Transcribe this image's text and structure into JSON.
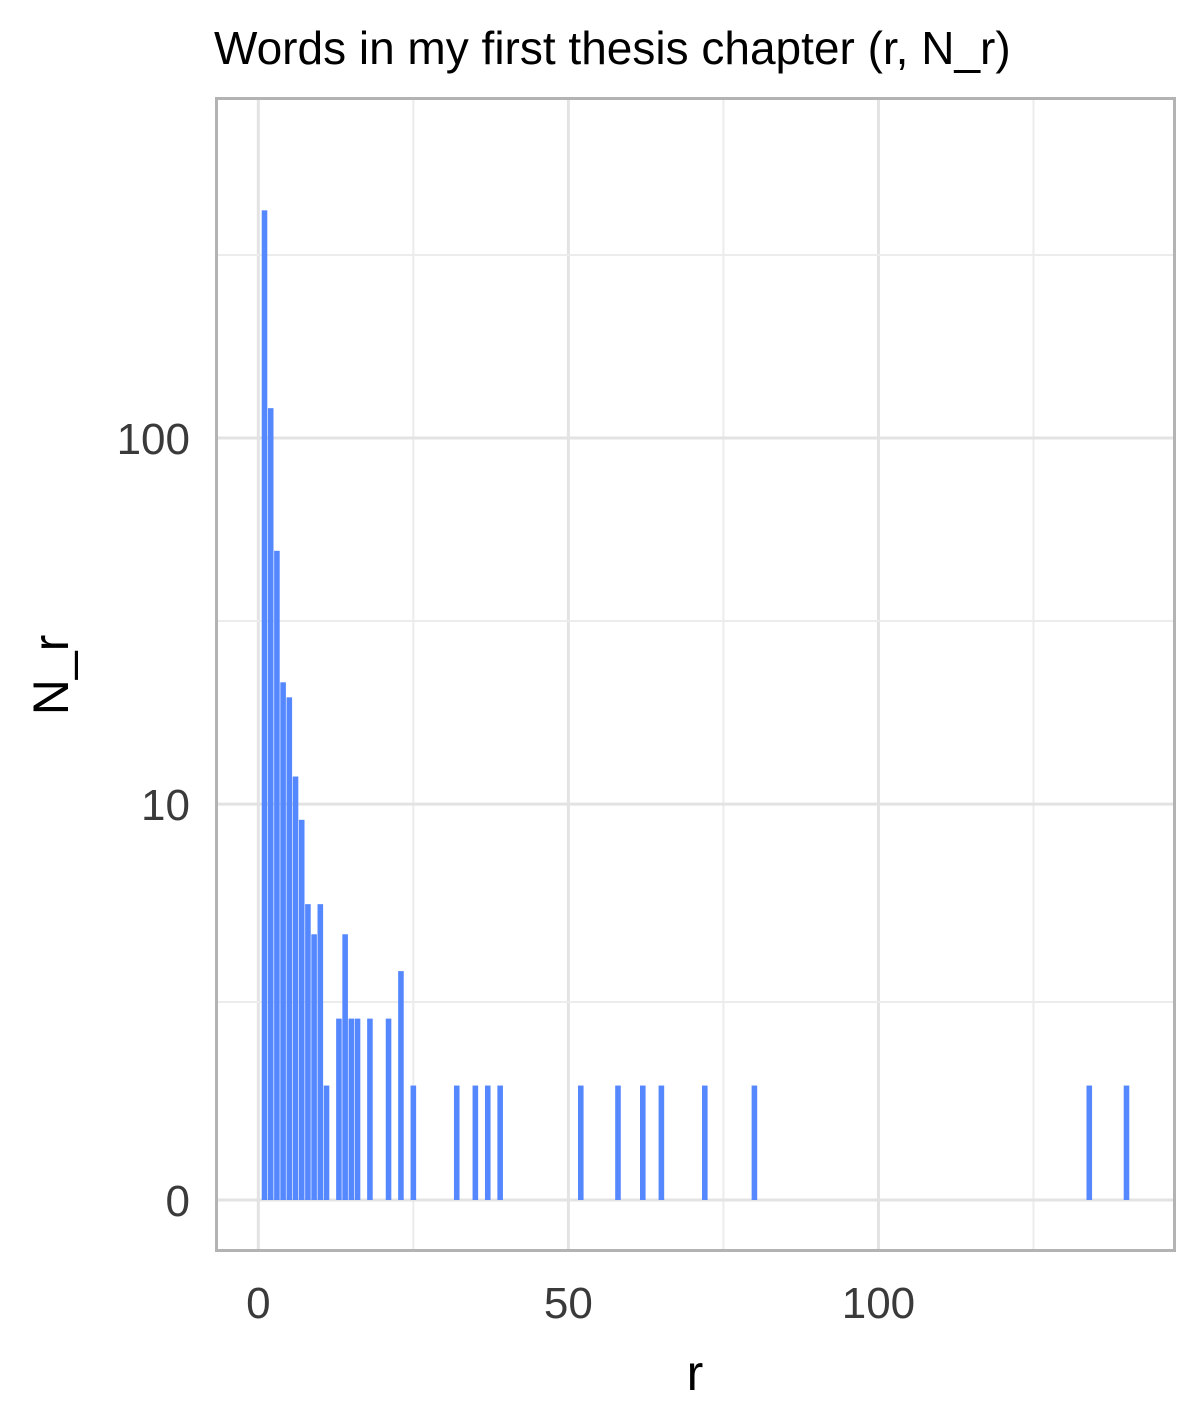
{
  "chart_data": {
    "type": "bar",
    "title": "Words in my first thesis chapter (r, N_r)",
    "xlabel": "r",
    "ylabel": "N_r",
    "y_scale": "log(1+y)",
    "xlim": [
      -6.5,
      147.5
    ],
    "x_ticks": [
      0,
      50,
      100
    ],
    "x_tick_labels": [
      "0",
      "50",
      "100"
    ],
    "y_ticks": [
      0,
      10,
      100
    ],
    "y_tick_labels": [
      "0",
      "10",
      "100"
    ],
    "grid": true,
    "bar_color": "#5588ff",
    "frame_color": "#b3b3b3",
    "x": [
      1,
      2,
      3,
      4,
      5,
      6,
      7,
      8,
      9,
      10,
      11,
      13,
      14,
      15,
      16,
      18,
      21,
      23,
      25,
      32,
      35,
      37,
      39,
      52,
      58,
      62,
      65,
      72,
      80,
      134,
      140
    ],
    "values": [
      400,
      120,
      50,
      22,
      20,
      12,
      9,
      5,
      4,
      5,
      1,
      2,
      4,
      2,
      2,
      2,
      2,
      3,
      1,
      1,
      1,
      1,
      1,
      1,
      1,
      1,
      1,
      1,
      1,
      1,
      1
    ]
  }
}
